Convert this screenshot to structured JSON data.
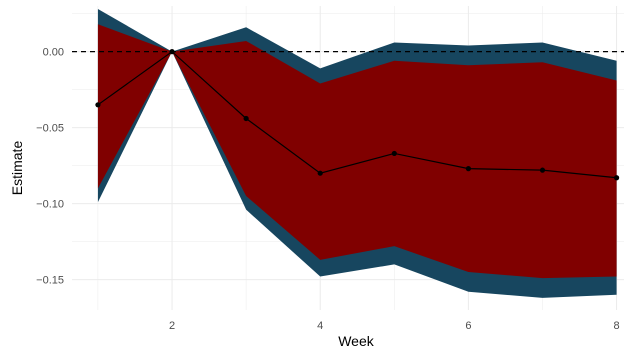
{
  "chart_data": {
    "type": "line",
    "xlabel": "Week",
    "ylabel": "Estimate",
    "xlim": [
      0.65,
      8.1
    ],
    "ylim": [
      -0.17,
      0.03
    ],
    "x_ticks": [
      2,
      4,
      6,
      8
    ],
    "x_tick_labels": [
      "2",
      "4",
      "6",
      "8"
    ],
    "y_ticks": [
      0.0,
      -0.05,
      -0.1,
      -0.15
    ],
    "y_tick_labels": [
      "0.00",
      "−0.05",
      "−0.10",
      "−0.15"
    ],
    "reference_line_y": 0,
    "grid": true,
    "x": [
      1,
      2,
      3,
      4,
      5,
      6,
      7,
      8
    ],
    "series": [
      {
        "values": [
          -0.035,
          0.0,
          -0.044,
          -0.08,
          -0.067,
          -0.077,
          -0.078,
          -0.083
        ]
      }
    ],
    "bands": [
      {
        "lower": [
          -0.099,
          0.0,
          -0.104,
          -0.148,
          -0.14,
          -0.158,
          -0.162,
          -0.16
        ],
        "upper": [
          0.028,
          0.0,
          0.016,
          -0.011,
          0.006,
          0.004,
          0.006,
          -0.006
        ]
      },
      {
        "lower": [
          -0.09,
          0.0,
          -0.095,
          -0.137,
          -0.128,
          -0.145,
          -0.149,
          -0.148
        ],
        "upper": [
          0.018,
          0.0,
          0.007,
          -0.021,
          -0.006,
          -0.009,
          -0.007,
          -0.019
        ]
      }
    ],
    "colors": {
      "outer_band": "#17465f",
      "inner_band": "#800000",
      "line": "#000000",
      "reference_line": "#000000",
      "grid": "#ebebeb"
    }
  }
}
